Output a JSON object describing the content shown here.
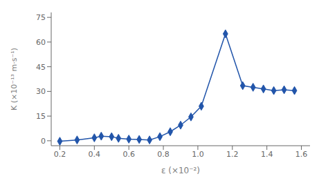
{
  "chart_data": {
    "type": "line",
    "x": [
      0.2,
      0.3,
      0.4,
      0.44,
      0.5,
      0.54,
      0.6,
      0.66,
      0.72,
      0.78,
      0.84,
      0.9,
      0.96,
      1.02,
      1.16,
      1.26,
      1.32,
      1.38,
      1.44,
      1.5,
      1.56
    ],
    "values": [
      -0.3,
      0.5,
      1.8,
      2.8,
      2.5,
      1.5,
      1.0,
      0.8,
      0.5,
      2.5,
      5.5,
      9.5,
      14.5,
      21.0,
      65.0,
      33.5,
      32.5,
      31.5,
      30.5,
      31.0,
      30.5
    ],
    "color": "#2255aa",
    "marker": "diamond",
    "xlim": [
      0.15,
      1.65
    ],
    "ylim": [
      -3,
      78
    ],
    "xticks": [
      0.2,
      0.4,
      0.6,
      0.8,
      {
        "value": 1.0,
        "label": "1.0"
      },
      1.2,
      1.4,
      1.6
    ],
    "yticks": [
      0,
      15,
      30,
      45,
      60,
      75
    ],
    "xlabel": "ε (×10⁻²)",
    "ylabel": "K (×10⁻¹³ m·s⁻¹)",
    "grid": false
  }
}
